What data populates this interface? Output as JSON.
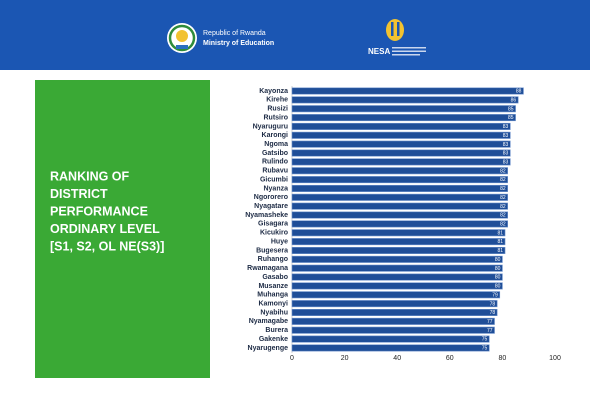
{
  "header": {
    "republic": "Republic of Rwanda",
    "ministry": "Ministry of Education",
    "nesa": "NESA"
  },
  "chart_data": {
    "type": "bar",
    "orientation": "horizontal",
    "title": [
      "RANKING OF",
      "DISTRICT",
      "PERFORMANCE",
      "ORDINARY LEVEL",
      "[S1, S2, OL NE(S3)]"
    ],
    "categories": [
      "Kayonza",
      "Kirehe",
      "Rusizi",
      "Rutsiro",
      "Nyaruguru",
      "Karongi",
      "Ngoma",
      "Gatsibo",
      "Rulindo",
      "Rubavu",
      "Gicumbi",
      "Nyanza",
      "Ngororero",
      "Nyagatare",
      "Nyamasheke",
      "Gisagara",
      "Kicukiro",
      "Huye",
      "Bugesera",
      "Ruhango",
      "Rwamagana",
      "Gasabo",
      "Musanze",
      "Muhanga",
      "Kamonyi",
      "Nyabihu",
      "Nyamagabe",
      "Burera",
      "Gakenke",
      "Nyarugenge"
    ],
    "values": [
      88,
      86,
      85,
      85,
      83,
      83,
      83,
      83,
      83,
      82,
      82,
      82,
      82,
      82,
      82,
      82,
      81,
      81,
      81,
      80,
      80,
      80,
      80,
      79,
      78,
      78,
      77,
      77,
      75,
      75
    ],
    "color": "#1f4e98",
    "xlim": [
      0,
      100
    ],
    "xticks": [
      0,
      20,
      40,
      60,
      80,
      100
    ],
    "grid": false
  }
}
